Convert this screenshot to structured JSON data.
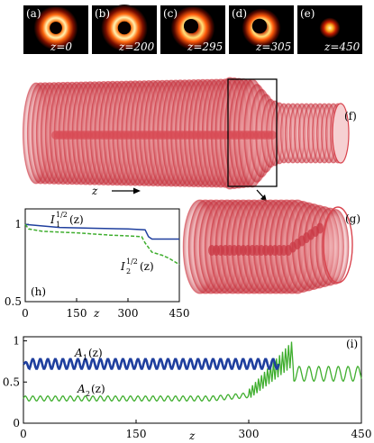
{
  "panels_top": [
    {
      "letter": "(a)",
      "z": "z=0",
      "type": "ring",
      "r": 0.34,
      "hole": 0.0
    },
    {
      "letter": "(b)",
      "z": "z=200",
      "type": "ring",
      "r": 0.36,
      "hole": 0.0
    },
    {
      "letter": "(c)",
      "z": "z=295",
      "type": "ring",
      "r": 0.34,
      "hole": 0.12
    },
    {
      "letter": "(d)",
      "z": "z=305",
      "type": "ring",
      "r": 0.3,
      "hole": 0.22
    },
    {
      "letter": "(e)",
      "z": "z=450",
      "type": "spot",
      "r": 0.16,
      "hole": 0.0
    }
  ],
  "panel_f": {
    "letter": "(f)",
    "axis_label": "z"
  },
  "panel_g": {
    "letter": "(g)"
  },
  "colors": {
    "tube": "#d9444e",
    "blue": "#1f3f9e",
    "green": "#3fae2e",
    "hot": "#ffd040"
  },
  "chart_h": {
    "letter": "(h)",
    "type": "line",
    "xlabel": "z",
    "xlim": [
      0,
      450
    ],
    "ylim": [
      0.5,
      1.1
    ],
    "xticks": [
      0,
      150,
      300,
      450
    ],
    "yticks": [
      {
        "v": 0.5,
        "t": "0.5"
      },
      {
        "v": 1.0,
        "t": "1"
      }
    ],
    "series": [
      {
        "name": "I_1^{1/2}(z)",
        "label_main": "I",
        "label_sub": "1",
        "label_sup": "1/2",
        "label_tail": "(z)",
        "style": "solid",
        "x": [
          0,
          100,
          200,
          300,
          350,
          360,
          370,
          450
        ],
        "y": [
          1.0,
          0.98,
          0.975,
          0.97,
          0.965,
          0.92,
          0.905,
          0.905
        ]
      },
      {
        "name": "I_2^{1/2}(z)",
        "label_main": "I",
        "label_sub": "2",
        "label_sup": "1/2",
        "label_tail": "(z)",
        "style": "dashed",
        "x": [
          0,
          10,
          50,
          150,
          250,
          300,
          340,
          350,
          360,
          370,
          400,
          420,
          450
        ],
        "y": [
          1.0,
          0.97,
          0.955,
          0.945,
          0.93,
          0.925,
          0.92,
          0.88,
          0.85,
          0.82,
          0.8,
          0.78,
          0.74
        ]
      }
    ]
  },
  "chart_i": {
    "letter": "(i)",
    "type": "line",
    "xlabel": "z",
    "xlim": [
      0,
      450
    ],
    "ylim": [
      0,
      1.05
    ],
    "xticks": [
      0,
      150,
      300,
      450
    ],
    "yticks": [
      {
        "v": 0,
        "t": "0"
      },
      {
        "v": 0.5,
        "t": "0.5"
      },
      {
        "v": 1,
        "t": "1"
      }
    ],
    "series": [
      {
        "name": "A_1(z)",
        "label_main": "A",
        "label_sub": "1",
        "label_tail": "(z)",
        "base": 0.72,
        "amp": 0.06,
        "period": 10
      },
      {
        "name": "A_2(z)",
        "label_main": "A",
        "label_sub": "2",
        "label_tail": "(z)",
        "base": 0.3,
        "amp": 0.03,
        "period": 10
      }
    ],
    "merge_start": 300,
    "merge_end": 360,
    "merge_peak": 0.95,
    "tail_base": 0.6,
    "tail_amp": 0.09
  }
}
